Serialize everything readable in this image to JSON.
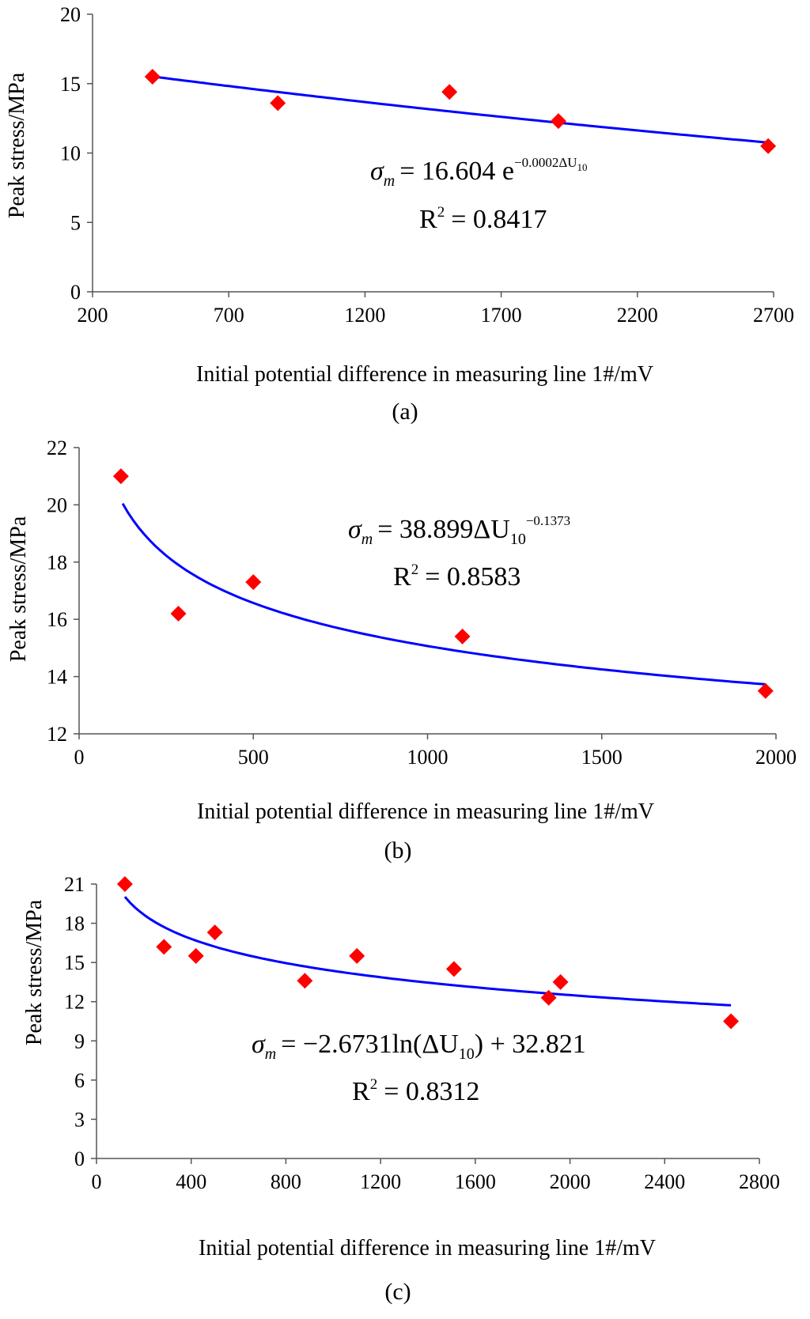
{
  "figure": {
    "panel_labels": [
      "(a)",
      "(b)",
      "(c)"
    ]
  },
  "chart_data": [
    {
      "type": "scatter",
      "panel": "a",
      "xlabel": "Initial potential difference in measuring line 1#/mV",
      "ylabel": "Peak stress/MPa",
      "xlim": [
        200,
        2700
      ],
      "ylim": [
        0,
        20
      ],
      "xticks": [
        200,
        700,
        1200,
        1700,
        2200,
        2700
      ],
      "yticks": [
        0,
        5,
        10,
        15,
        20
      ],
      "points": [
        {
          "x": 420,
          "y": 15.5
        },
        {
          "x": 880,
          "y": 13.6
        },
        {
          "x": 1510,
          "y": 14.4
        },
        {
          "x": 1910,
          "y": 12.3
        },
        {
          "x": 2680,
          "y": 10.5
        }
      ],
      "trendline": {
        "model": "exponential",
        "a": 16.604,
        "b": -0.000162,
        "x_from": 420,
        "x_to": 2680
      },
      "equation_lhs": "σ",
      "equation_lhs_sub": "m",
      "equation_rhs": "= 16.604 e",
      "equation_sup": "−0.0002ΔU",
      "equation_sup_sub": "10",
      "r2_label": "R",
      "r2_value": "= 0.8417",
      "r2_exp": "2",
      "colors": {
        "marker": "#ff0000",
        "trend": "#0000ff"
      }
    },
    {
      "type": "scatter",
      "panel": "b",
      "xlabel": "Initial potential difference in measuring line 1#/mV",
      "ylabel": "Peak stress/MPa",
      "xlim": [
        0,
        2000
      ],
      "ylim": [
        12,
        22
      ],
      "xticks": [
        0,
        500,
        1000,
        1500,
        2000
      ],
      "yticks": [
        12,
        14,
        16,
        18,
        20,
        22
      ],
      "points": [
        {
          "x": 120,
          "y": 21.0
        },
        {
          "x": 285,
          "y": 16.2
        },
        {
          "x": 500,
          "y": 17.3
        },
        {
          "x": 1100,
          "y": 15.4
        },
        {
          "x": 1970,
          "y": 13.5
        }
      ],
      "trendline": {
        "model": "power",
        "a": 38.899,
        "b": -0.1373,
        "x_from": 125,
        "x_to": 1970
      },
      "equation_lhs": "σ",
      "equation_lhs_sub": "m",
      "equation_rhs": "= 38.899ΔU",
      "equation_rhs_sub": "10",
      "equation_sup": "−0.1373",
      "r2_label": "R",
      "r2_value": "= 0.8583",
      "r2_exp": "2",
      "colors": {
        "marker": "#ff0000",
        "trend": "#0000ff"
      }
    },
    {
      "type": "scatter",
      "panel": "c",
      "xlabel": "Initial potential difference in measuring line 1#/mV",
      "ylabel": "Peak stress/MPa",
      "xlim": [
        0,
        2800
      ],
      "ylim": [
        0,
        21
      ],
      "xticks": [
        0,
        400,
        800,
        1200,
        1600,
        2000,
        2400,
        2800
      ],
      "yticks": [
        0,
        3,
        6,
        9,
        12,
        15,
        18,
        21
      ],
      "points": [
        {
          "x": 120,
          "y": 21.0
        },
        {
          "x": 285,
          "y": 16.2
        },
        {
          "x": 420,
          "y": 15.5
        },
        {
          "x": 500,
          "y": 17.3
        },
        {
          "x": 880,
          "y": 13.6
        },
        {
          "x": 1100,
          "y": 15.5
        },
        {
          "x": 1510,
          "y": 14.5
        },
        {
          "x": 1910,
          "y": 12.3
        },
        {
          "x": 1960,
          "y": 13.5
        },
        {
          "x": 2680,
          "y": 10.5
        }
      ],
      "trendline": {
        "model": "log",
        "a": -2.6731,
        "b": 32.821,
        "x_from": 120,
        "x_to": 2680
      },
      "equation_lhs": "σ",
      "equation_lhs_sub": "m",
      "equation_rhs": "= −2.6731ln(ΔU",
      "equation_rhs_sub": "10",
      "equation_rhs_tail": ") + 32.821",
      "r2_label": "R",
      "r2_value": "= 0.8312",
      "r2_exp": "2",
      "colors": {
        "marker": "#ff0000",
        "trend": "#0000ff"
      }
    }
  ]
}
